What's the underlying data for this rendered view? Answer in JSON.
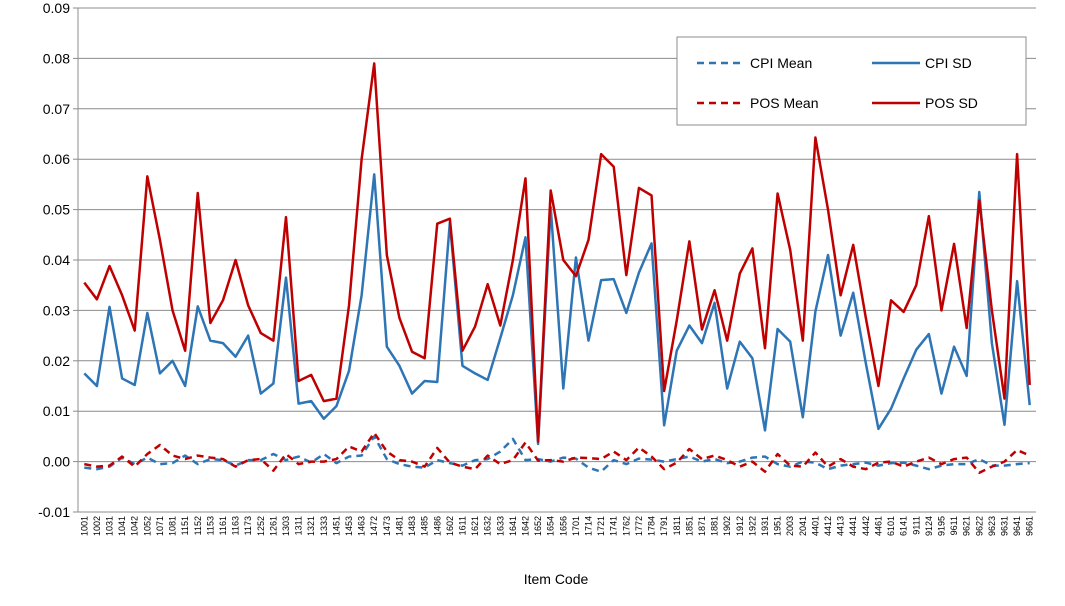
{
  "chart_data": {
    "type": "line",
    "x_label": "Item Code",
    "categories": [
      "1001",
      "1002",
      "1031",
      "1041",
      "1042",
      "1052",
      "1071",
      "1081",
      "1151",
      "1152",
      "1153",
      "1161",
      "1163",
      "1173",
      "1252",
      "1261",
      "1303",
      "1311",
      "1321",
      "1333",
      "1451",
      "1453",
      "1463",
      "1472",
      "1473",
      "1481",
      "1483",
      "1485",
      "1486",
      "1602",
      "1611",
      "1621",
      "1632",
      "1633",
      "1641",
      "1642",
      "1652",
      "1654",
      "1656",
      "1701",
      "1714",
      "1721",
      "1741",
      "1762",
      "1772",
      "1784",
      "1791",
      "1811",
      "1851",
      "1871",
      "1881",
      "1902",
      "1912",
      "1922",
      "1931",
      "1951",
      "2003",
      "2041",
      "4401",
      "4412",
      "4413",
      "4441",
      "4442",
      "4461",
      "6101",
      "6141",
      "9111",
      "9124",
      "9195",
      "9611",
      "9621",
      "9622",
      "9623",
      "9631",
      "9641",
      "9661"
    ],
    "series": [
      {
        "name": "CPI Mean",
        "color": "#2e75b6",
        "dashed": true,
        "values": [
          -0.0012,
          -0.0015,
          -0.001,
          0.0008,
          -0.0005,
          0.0008,
          -0.0005,
          -0.0003,
          0.0012,
          -0.0005,
          0.0005,
          0.0003,
          -0.0008,
          0.0003,
          0.0003,
          0.0015,
          0.0003,
          0.001,
          -0.0002,
          0.0015,
          -0.0003,
          0.001,
          0.0012,
          0.005,
          0.0005,
          -0.0005,
          -0.001,
          -0.0012,
          0.0003,
          -0.0003,
          -0.0008,
          0.0003,
          0.0005,
          0.002,
          0.0045,
          0.0003,
          0.0005,
          0,
          0.0008,
          0.0006,
          -0.0012,
          -0.002,
          0.0003,
          -0.0005,
          0.0006,
          0.0004,
          0,
          0.0005,
          0.001,
          0,
          0.0005,
          -0.0003,
          0,
          0.0008,
          0.001,
          -0.0005,
          -0.001,
          0,
          -0.0002,
          -0.0015,
          -0.0008,
          -0.0005,
          -0.0002,
          -0.0008,
          -0.0003,
          -0.0002,
          -0.0008,
          -0.0015,
          -0.0008,
          -0.0005,
          -0.0005,
          0.0005,
          -0.0008,
          -0.0008,
          -0.0005,
          -0.0003
        ]
      },
      {
        "name": "CPI SD",
        "color": "#2e75b6",
        "dashed": false,
        "values": [
          0.0175,
          0.015,
          0.0307,
          0.0165,
          0.0152,
          0.0295,
          0.0175,
          0.02,
          0.015,
          0.0308,
          0.024,
          0.0235,
          0.0208,
          0.025,
          0.0135,
          0.0155,
          0.0365,
          0.0115,
          0.012,
          0.0085,
          0.011,
          0.018,
          0.033,
          0.057,
          0.0228,
          0.019,
          0.0135,
          0.016,
          0.0158,
          0.0475,
          0.019,
          0.0175,
          0.0162,
          0.0245,
          0.033,
          0.0445,
          0.0035,
          0.0505,
          0.0145,
          0.0405,
          0.024,
          0.036,
          0.0362,
          0.0295,
          0.0375,
          0.0433,
          0.0072,
          0.022,
          0.027,
          0.0235,
          0.0315,
          0.0145,
          0.0238,
          0.0205,
          0.0062,
          0.0263,
          0.0238,
          0.0088,
          0.0298,
          0.041,
          0.025,
          0.0335,
          0.0195,
          0.0065,
          0.0105,
          0.0165,
          0.0222,
          0.0253,
          0.0135,
          0.0228,
          0.017,
          0.0535,
          0.0235,
          0.0073,
          0.0358,
          0.0112
        ]
      },
      {
        "name": "POS Mean",
        "color": "#c00000",
        "dashed": true,
        "values": [
          -0.0005,
          -0.001,
          -0.0008,
          0.001,
          -0.001,
          0.0015,
          0.0033,
          0.0012,
          0.0005,
          0.0012,
          0.0008,
          0.0005,
          -0.001,
          0.0003,
          0.0005,
          -0.0018,
          0.0015,
          -0.0005,
          0,
          0,
          0.0005,
          0.003,
          0.002,
          0.0057,
          0.002,
          0.0003,
          0,
          -0.001,
          0.0027,
          -0.0002,
          -0.001,
          -0.0015,
          0.0012,
          -0.0005,
          0.0003,
          0.0038,
          0.0002,
          0.0003,
          0,
          0.0008,
          0.0007,
          0.0005,
          0.002,
          0.0003,
          0.0028,
          0.001,
          -0.0015,
          -0.0002,
          0.0025,
          0.0005,
          0.0012,
          0.0003,
          -0.001,
          0,
          -0.002,
          0.0015,
          -0.0008,
          -0.001,
          0.0018,
          -0.001,
          0.0005,
          -0.001,
          -0.0015,
          -0.0002,
          0,
          -0.001,
          0,
          0.0008,
          -0.0005,
          0.0005,
          0.0008,
          -0.0022,
          -0.001,
          0,
          0.0023,
          0.0012
        ]
      },
      {
        "name": "POS SD",
        "color": "#c00000",
        "dashed": false,
        "values": [
          0.0355,
          0.0322,
          0.0388,
          0.033,
          0.026,
          0.0566,
          0.044,
          0.03,
          0.022,
          0.0533,
          0.0275,
          0.032,
          0.04,
          0.031,
          0.0255,
          0.024,
          0.0485,
          0.016,
          0.0172,
          0.012,
          0.0125,
          0.031,
          0.06,
          0.079,
          0.041,
          0.0285,
          0.0218,
          0.0205,
          0.0472,
          0.0482,
          0.022,
          0.0268,
          0.0352,
          0.027,
          0.04,
          0.0562,
          0.004,
          0.0538,
          0.04,
          0.0368,
          0.044,
          0.061,
          0.0585,
          0.037,
          0.0543,
          0.0528,
          0.014,
          0.028,
          0.0437,
          0.0262,
          0.034,
          0.024,
          0.0373,
          0.0423,
          0.0225,
          0.0532,
          0.042,
          0.024,
          0.0643,
          0.05,
          0.033,
          0.043,
          0.0285,
          0.015,
          0.032,
          0.0297,
          0.035,
          0.0487,
          0.03,
          0.0432,
          0.0265,
          0.0518,
          0.03,
          0.0125,
          0.061,
          0.0152
        ]
      }
    ],
    "ylim": [
      -0.01,
      0.09
    ],
    "yticks": [
      {
        "value": -0.01,
        "label": "-0.01"
      },
      {
        "value": 0,
        "label": "0.00"
      },
      {
        "value": 0.01,
        "label": "0.01"
      },
      {
        "value": 0.02,
        "label": "0.02"
      },
      {
        "value": 0.03,
        "label": "0.03"
      },
      {
        "value": 0.04,
        "label": "0.04"
      },
      {
        "value": 0.05,
        "label": "0.05"
      },
      {
        "value": 0.06,
        "label": "0.06"
      },
      {
        "value": 0.07,
        "label": "0.07"
      },
      {
        "value": 0.08,
        "label": "0.08"
      },
      {
        "value": 0.09,
        "label": "0.09"
      }
    ],
    "grid": true,
    "legend": "upper right"
  }
}
